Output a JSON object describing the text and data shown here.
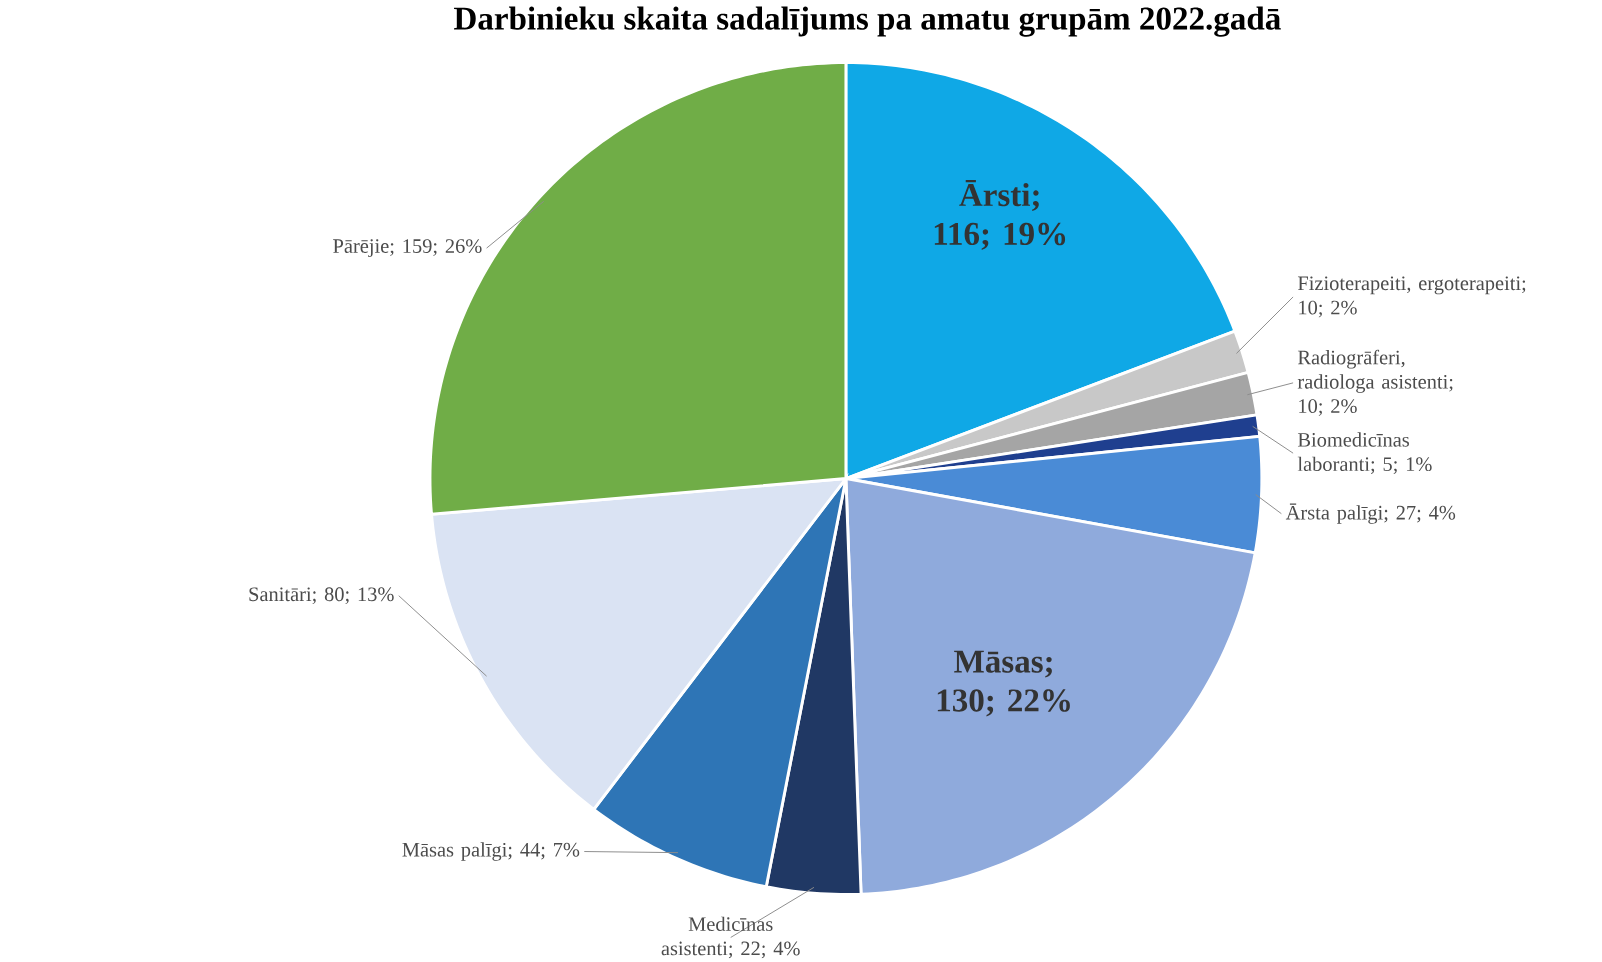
{
  "chart_data": {
    "type": "pie",
    "title": "Darbinieku skaita sadalījums pa amatu grupām 2022.gadā",
    "categories": [
      "Ārsti",
      "Fizioterapeiti, ergoterapeiti",
      "Radiogrāferi, radiologa asistenti",
      "Biomedicīnas laboranti",
      "Ārsta palīgi",
      "Māsas",
      "Medicīnas asistenti",
      "Māsas palīgi",
      "Sanitāri",
      "Pārējie"
    ],
    "values": [
      116,
      10,
      10,
      5,
      27,
      130,
      22,
      44,
      80,
      159
    ],
    "value_labels": [
      "; 116; 19%",
      "; 10; 2%",
      "; 10; 2%",
      "; 5; 1%",
      "; 27; 4%",
      "; 130; 22%",
      "; 22; 4%",
      "; 44; 7%",
      "; 80; 13%",
      "; 159; 26%"
    ],
    "colors": [
      "#0fa8e6",
      "#c8c8c8",
      "#a5a5a5",
      "#1f3f8f",
      "#4a8bd6",
      "#8faadc",
      "#203864",
      "#2e75b6",
      "#dae3f3",
      "#70ad47"
    ]
  }
}
